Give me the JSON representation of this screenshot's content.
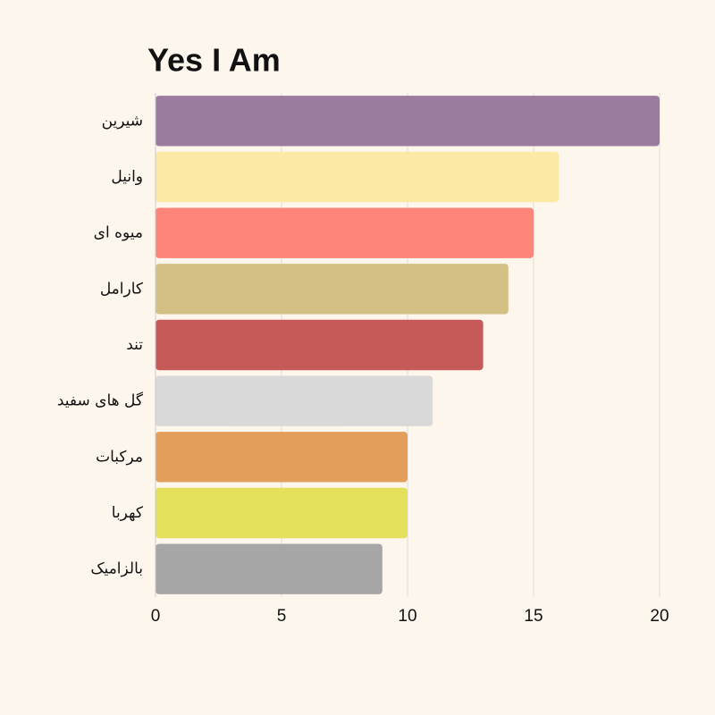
{
  "chart_data": {
    "type": "barh",
    "title": "Yes I Am",
    "categories": [
      "شیرین",
      "وانیل",
      "میوه ای",
      "کارامل",
      "تند",
      "گل های سفید",
      "مرکبات",
      "کهربا",
      "بالزامیک"
    ],
    "values": [
      20,
      16,
      15,
      14,
      13,
      11,
      10,
      10,
      9
    ],
    "colors": [
      "#9b7b9e",
      "#fde9a6",
      "#fd857a",
      "#d4bf84",
      "#c55a58",
      "#d9d9d9",
      "#e49e5c",
      "#e4e05c",
      "#a6a6a6"
    ],
    "xlim": [
      0,
      20
    ],
    "xticks": [
      0,
      5,
      10,
      15,
      20
    ],
    "grid": true
  }
}
